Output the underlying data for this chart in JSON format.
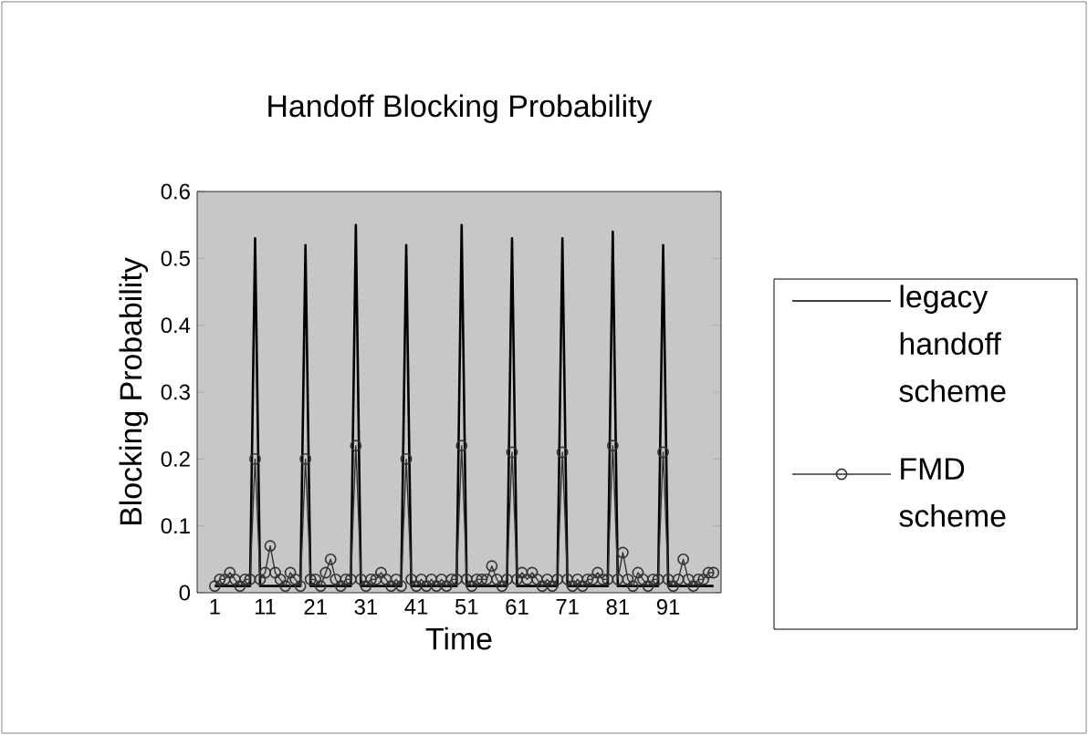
{
  "chart_data": {
    "type": "line",
    "title": "Handoff Blocking Probability",
    "xlabel": "Time",
    "ylabel": "Blocking Probability",
    "categories": [
      "1",
      null,
      null,
      null,
      null,
      null,
      null,
      null,
      null,
      null,
      "11",
      null,
      null,
      null,
      null,
      null,
      null,
      null,
      null,
      null,
      "21",
      null,
      null,
      null,
      null,
      null,
      null,
      null,
      null,
      null,
      "31",
      null,
      null,
      null,
      null,
      null,
      null,
      null,
      null,
      null,
      "41",
      null,
      null,
      null,
      null,
      null,
      null,
      null,
      null,
      null,
      "51",
      null,
      null,
      null,
      null,
      null,
      null,
      null,
      null,
      null,
      "61",
      null,
      null,
      null,
      null,
      null,
      null,
      null,
      null,
      null,
      "71",
      null,
      null,
      null,
      null,
      null,
      null,
      null,
      null,
      null,
      "81",
      null,
      null,
      null,
      null,
      null,
      null,
      null,
      null,
      null,
      "91",
      null,
      null,
      null,
      null,
      null,
      null,
      null,
      null,
      null
    ],
    "series": [
      {
        "name": "legacy handoff scheme",
        "color": "#000000",
        "marker": "none",
        "values": [
          0.01,
          0.01,
          0.01,
          0.01,
          0.01,
          0.01,
          0.01,
          0.01,
          0.53,
          0.01,
          0.01,
          0.01,
          0.01,
          0.01,
          0.01,
          0.01,
          0.01,
          0.01,
          0.52,
          0.01,
          0.01,
          0.01,
          0.01,
          0.01,
          0.01,
          0.01,
          0.01,
          0.01,
          0.55,
          0.01,
          0.01,
          0.01,
          0.01,
          0.01,
          0.01,
          0.01,
          0.01,
          0.01,
          0.52,
          0.01,
          0.01,
          0.01,
          0.01,
          0.01,
          0.01,
          0.01,
          0.01,
          0.01,
          0.01,
          0.55,
          0.01,
          0.01,
          0.01,
          0.01,
          0.01,
          0.01,
          0.01,
          0.01,
          0.01,
          0.53,
          0.01,
          0.01,
          0.01,
          0.01,
          0.01,
          0.01,
          0.01,
          0.01,
          0.01,
          0.53,
          0.01,
          0.01,
          0.01,
          0.01,
          0.01,
          0.01,
          0.01,
          0.01,
          0.01,
          0.54,
          0.01,
          0.01,
          0.01,
          0.01,
          0.01,
          0.01,
          0.01,
          0.01,
          0.01,
          0.52,
          0.01,
          0.01,
          0.01,
          0.01,
          0.01,
          0.01,
          0.01,
          0.01,
          0.01,
          0.01
        ]
      },
      {
        "name": "FMD scheme",
        "color": "#333333",
        "marker": "circle",
        "values": [
          0.01,
          0.02,
          0.02,
          0.03,
          0.02,
          0.01,
          0.02,
          0.02,
          0.2,
          0.02,
          0.03,
          0.07,
          0.03,
          0.02,
          0.01,
          0.03,
          0.02,
          0.01,
          0.2,
          0.02,
          0.02,
          0.01,
          0.03,
          0.05,
          0.02,
          0.01,
          0.02,
          0.02,
          0.22,
          0.02,
          0.01,
          0.02,
          0.02,
          0.03,
          0.02,
          0.01,
          0.02,
          0.01,
          0.2,
          0.02,
          0.01,
          0.02,
          0.01,
          0.02,
          0.01,
          0.02,
          0.01,
          0.02,
          0.02,
          0.22,
          0.02,
          0.01,
          0.02,
          0.02,
          0.02,
          0.04,
          0.02,
          0.01,
          0.02,
          0.21,
          0.02,
          0.03,
          0.02,
          0.03,
          0.02,
          0.01,
          0.02,
          0.01,
          0.02,
          0.21,
          0.02,
          0.01,
          0.02,
          0.01,
          0.02,
          0.02,
          0.03,
          0.02,
          0.02,
          0.22,
          0.02,
          0.06,
          0.02,
          0.01,
          0.03,
          0.02,
          0.01,
          0.02,
          0.02,
          0.21,
          0.02,
          0.01,
          0.02,
          0.05,
          0.02,
          0.01,
          0.02,
          0.02,
          0.03,
          0.03
        ]
      }
    ],
    "ylim": [
      0,
      0.6
    ],
    "yticks": [
      0,
      0.1,
      0.2,
      0.3,
      0.4,
      0.5,
      0.6
    ],
    "legend": "right"
  }
}
